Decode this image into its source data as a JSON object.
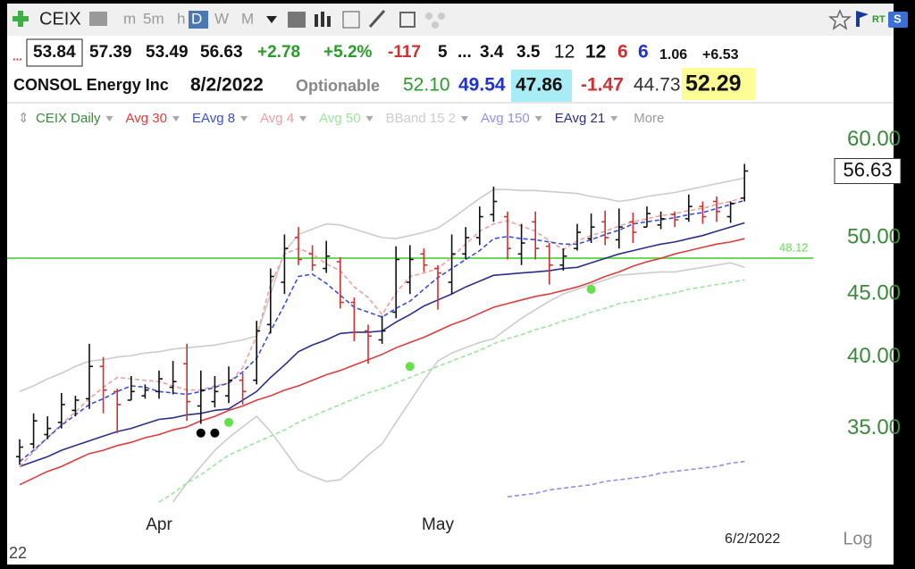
{
  "toolbar": {
    "symbol": "CEIX",
    "timeframes": [
      "m",
      "5m",
      "h",
      "D",
      "W",
      "M"
    ],
    "active_timeframe": 3,
    "rt": "RT",
    "badge": "S"
  },
  "quote_bar": {
    "flag": "...",
    "change": "+2.78",
    "change_pct": "+5.2%",
    "f1": "-117",
    "f2": "5",
    "f3": "...",
    "f4": "3.4",
    "f5": "3.5",
    "f6": "12",
    "f7": "12",
    "f8": "6",
    "f9": "6",
    "f10": "1.06",
    "f11": "+6.53"
  },
  "info_bar": {
    "company": "CONSOL Energy Inc",
    "date": "8/2/2022",
    "optionable": "Optionable",
    "v1": "52.10",
    "v2": "49.54",
    "v3": "47.86",
    "v4": "-1.47",
    "v5": "44.73",
    "v6": "52.29"
  },
  "footer": {
    "left_number": "22"
  },
  "chart_data": {
    "type": "ohlc",
    "log_scale": true,
    "grid": false,
    "ylim": [
      30.35,
      61.2
    ],
    "yticks": [
      {
        "value": 35,
        "label": "35.00"
      },
      {
        "value": 40,
        "label": "40.00"
      },
      {
        "value": 45,
        "label": "45.00"
      },
      {
        "value": 50,
        "label": "50.00"
      },
      {
        "value": 60,
        "label": "60.00"
      }
    ],
    "categories": [
      null,
      null,
      null,
      null,
      null,
      null,
      null,
      null,
      null,
      null,
      "Apr",
      null,
      null,
      null,
      null,
      null,
      null,
      null,
      null,
      null,
      null,
      null,
      null,
      null,
      null,
      null,
      null,
      null,
      null,
      null,
      "May",
      null,
      null,
      null,
      null,
      null,
      null,
      null,
      null,
      null,
      null,
      null,
      null,
      null,
      null,
      null,
      null,
      null,
      null,
      null,
      null,
      null,
      "6/2/2022"
    ],
    "price": {
      "name": "CEIX Daily",
      "color": "#3a8a3a",
      "up_color": "#111111",
      "down_color": "#d03030",
      "open": [
        33.2,
        34.0,
        34.6,
        35.4,
        36.2,
        37.0,
        39.3,
        37.5,
        36.9,
        37.2,
        37.5,
        37.8,
        39.5,
        36.5,
        36.8,
        37.2,
        38.3,
        38.3,
        42.5,
        46.0,
        50.0,
        48.5,
        47.2,
        47.8,
        44.3,
        42.0,
        41.3,
        43.5,
        46.0,
        48.5,
        47.2,
        46.0,
        48.5,
        50.0,
        52.2,
        52.0,
        48.5,
        51.5,
        49.2,
        47.5,
        49.0,
        49.9,
        51.5,
        49.8,
        51.5,
        51.0,
        51.2,
        52.2,
        51.8,
        53.0,
        53.5,
        52.0,
        53.84
      ],
      "high": [
        34.3,
        36.0,
        35.8,
        37.4,
        37.2,
        41.0,
        40.0,
        37.7,
        38.6,
        38.0,
        39.0,
        39.7,
        41.0,
        39.0,
        38.6,
        39.3,
        38.8,
        42.8,
        47.2,
        50.3,
        51.0,
        49.3,
        49.7,
        48.2,
        44.7,
        42.5,
        43.2,
        49.2,
        49.3,
        49.0,
        47.5,
        50.3,
        51.0,
        53.0,
        55.0,
        52.5,
        51.3,
        52.5,
        49.5,
        49.0,
        51.3,
        52.3,
        52.6,
        52.8,
        52.4,
        53.0,
        52.5,
        52.5,
        54.2,
        53.5,
        54.0,
        53.5,
        57.39
      ],
      "low": [
        32.7,
        33.7,
        34.3,
        35.0,
        35.8,
        36.3,
        36.0,
        34.7,
        36.9,
        37.0,
        37.0,
        37.3,
        35.5,
        35.3,
        36.4,
        36.7,
        36.6,
        38.0,
        41.8,
        45.0,
        47.5,
        47.0,
        46.8,
        43.8,
        41.2,
        39.5,
        41.0,
        43.0,
        45.0,
        46.9,
        43.7,
        45.0,
        48.0,
        49.3,
        51.5,
        48.0,
        47.5,
        48.0,
        45.8,
        47.0,
        48.8,
        49.5,
        49.3,
        49.0,
        49.5,
        51.0,
        50.8,
        51.0,
        51.5,
        51.3,
        51.5,
        51.4,
        53.49
      ],
      "close": [
        33.8,
        35.5,
        35.0,
        36.6,
        36.9,
        39.3,
        37.6,
        36.6,
        37.5,
        37.6,
        38.4,
        38.2,
        36.8,
        37.6,
        37.5,
        38.3,
        37.5,
        42.0,
        46.5,
        49.0,
        48.0,
        47.5,
        48.3,
        44.3,
        41.9,
        41.6,
        42.0,
        48.0,
        48.0,
        47.5,
        46.8,
        48.5,
        50.0,
        52.0,
        53.5,
        49.0,
        49.5,
        49.0,
        47.5,
        48.3,
        50.5,
        51.0,
        50.0,
        51.0,
        50.5,
        52.3,
        51.8,
        51.7,
        53.0,
        52.0,
        52.5,
        53.3,
        56.63
      ]
    },
    "series": [
      {
        "name": "Avg 30",
        "color": "#e03c3c",
        "dash": false,
        "values": [
          31.5,
          31.9,
          32.3,
          32.6,
          33.0,
          33.4,
          33.6,
          33.9,
          34.1,
          34.4,
          34.6,
          34.9,
          35.1,
          35.5,
          35.8,
          36.2,
          36.5,
          36.9,
          37.2,
          37.6,
          37.9,
          38.3,
          38.7,
          39.0,
          39.4,
          39.8,
          40.2,
          40.7,
          41.1,
          41.5,
          42.0,
          42.5,
          42.9,
          43.4,
          43.9,
          44.2,
          44.5,
          44.8,
          45.0,
          45.3,
          45.6,
          46.0,
          46.5,
          46.9,
          47.4,
          47.8,
          48.1,
          48.5,
          48.8,
          49.1,
          49.4,
          49.6,
          49.9
        ]
      },
      {
        "name": "EAvg 8",
        "color": "#3a4fd8",
        "dash": true,
        "values": [
          32.9,
          33.6,
          34.4,
          35.2,
          35.9,
          36.6,
          37.0,
          37.5,
          37.9,
          37.8,
          37.5,
          37.4,
          37.3,
          37.5,
          37.8,
          38.1,
          38.9,
          39.9,
          42.0,
          44.1,
          46.5,
          46.7,
          45.9,
          44.9,
          43.9,
          43.5,
          43.1,
          43.8,
          44.4,
          45.4,
          46.4,
          47.2,
          48.0,
          48.8,
          49.9,
          50.1,
          49.9,
          49.8,
          49.6,
          49.4,
          49.4,
          49.8,
          50.3,
          50.7,
          51.3,
          51.5,
          51.7,
          51.9,
          52.2,
          52.4,
          52.8,
          53.2,
          53.6
        ]
      },
      {
        "name": "Avg 4",
        "color": "#f0a0a0",
        "dash": true,
        "values": [
          32.6,
          33.5,
          34.4,
          35.3,
          36.1,
          37.0,
          37.8,
          38.5,
          38.4,
          38.3,
          38.2,
          37.9,
          37.6,
          37.6,
          37.9,
          38.1,
          39.2,
          41.6,
          45.8,
          48.5,
          49.0,
          48.5,
          47.6,
          47.0,
          45.6,
          44.7,
          43.3,
          45.1,
          46.5,
          46.8,
          47.2,
          48.2,
          49.4,
          50.6,
          51.3,
          51.6,
          51.1,
          50.6,
          49.7,
          48.9,
          49.7,
          50.2,
          50.6,
          51.1,
          51.5,
          51.8,
          52.1,
          52.3,
          52.6,
          52.8,
          53.2,
          53.5,
          53.9
        ]
      },
      {
        "name": "Avg 50",
        "color": "#9be69b",
        "dash": true,
        "values": [
          null,
          null,
          null,
          null,
          null,
          null,
          null,
          null,
          null,
          null,
          30.5,
          31.0,
          31.6,
          32.1,
          32.7,
          33.3,
          33.7,
          34.1,
          34.5,
          34.9,
          35.4,
          35.8,
          36.2,
          36.6,
          37.0,
          37.4,
          37.7,
          38.1,
          38.5,
          38.9,
          39.3,
          39.7,
          40.1,
          40.5,
          41.0,
          41.4,
          41.7,
          42.1,
          42.4,
          42.8,
          43.1,
          43.5,
          43.8,
          44.2,
          44.4,
          44.6,
          44.9,
          45.1,
          45.4,
          45.6,
          45.8,
          46.0,
          46.2
        ]
      },
      {
        "name": "BBand 15 2",
        "color": "#cccccc",
        "dash": false,
        "values": [
          37.5,
          37.9,
          38.4,
          38.8,
          39.3,
          39.7,
          39.8,
          40.0,
          40.1,
          40.3,
          40.4,
          40.6,
          40.7,
          40.8,
          40.9,
          41.1,
          41.3,
          41.6,
          45.0,
          48.7,
          50.3,
          50.8,
          51.3,
          51.2,
          50.8,
          50.4,
          50.0,
          49.9,
          50.2,
          50.5,
          50.9,
          51.8,
          52.8,
          53.8,
          54.7,
          54.7,
          54.6,
          54.6,
          54.5,
          54.4,
          54.3,
          54.0,
          53.8,
          53.5,
          53.7,
          54.0,
          54.2,
          54.4,
          54.7,
          55.0,
          55.3,
          55.6,
          55.9
        ],
        "lower": [
          null,
          null,
          null,
          null,
          null,
          null,
          null,
          null,
          null,
          null,
          null,
          30.5,
          31.6,
          32.6,
          33.6,
          34.4,
          35.1,
          35.8,
          34.8,
          33.6,
          32.4,
          32.0,
          31.7,
          31.8,
          32.5,
          33.3,
          34.0,
          35.4,
          36.8,
          38.3,
          39.7,
          40.3,
          40.7,
          41.1,
          41.4,
          42.2,
          43.0,
          43.7,
          44.4,
          45.0,
          45.4,
          45.8,
          46.2,
          46.6,
          46.7,
          46.8,
          46.9,
          46.9,
          47.1,
          47.3,
          47.5,
          47.7,
          47.3
        ]
      },
      {
        "name": "Avg 150",
        "color": "#9090ee",
        "dash": true,
        "values": [
          null,
          null,
          null,
          null,
          null,
          null,
          null,
          null,
          null,
          null,
          null,
          null,
          null,
          null,
          null,
          null,
          null,
          null,
          null,
          null,
          null,
          null,
          null,
          null,
          null,
          null,
          null,
          null,
          null,
          null,
          null,
          null,
          null,
          null,
          null,
          30.8,
          30.9,
          31.0,
          31.2,
          31.3,
          31.4,
          31.5,
          31.7,
          31.8,
          31.9,
          32.0,
          32.2,
          32.3,
          32.4,
          32.5,
          32.6,
          32.8,
          32.9
        ]
      },
      {
        "name": "EAvg 21",
        "color": "#2a2f8a",
        "dash": false,
        "values": [
          32.6,
          32.9,
          33.2,
          33.6,
          33.9,
          34.2,
          34.5,
          34.8,
          35.0,
          35.3,
          35.6,
          35.7,
          35.9,
          36.0,
          36.2,
          36.3,
          36.9,
          37.5,
          38.5,
          39.4,
          40.4,
          40.9,
          41.3,
          41.8,
          41.9,
          41.9,
          42.0,
          42.7,
          43.3,
          44.0,
          44.5,
          45.0,
          45.6,
          46.1,
          46.6,
          46.7,
          46.8,
          46.9,
          47.0,
          47.2,
          47.3,
          47.7,
          48.1,
          48.5,
          48.8,
          49.1,
          49.4,
          49.6,
          49.9,
          50.2,
          50.6,
          51.0,
          51.4
        ]
      }
    ],
    "draw_order": [
      4,
      3,
      5,
      0,
      6,
      2,
      1
    ],
    "markers": [
      {
        "color": "#000000",
        "values": [
          null,
          null,
          null,
          null,
          null,
          null,
          null,
          null,
          null,
          null,
          null,
          null,
          null,
          34.7,
          34.7,
          null,
          null,
          null,
          null,
          null,
          null,
          null,
          null,
          null,
          null,
          null,
          null,
          null,
          null,
          null,
          null,
          null,
          null,
          null,
          null,
          null,
          null,
          null,
          null,
          null,
          null,
          null,
          null,
          null,
          null,
          null,
          null,
          null,
          null,
          null,
          null,
          null,
          null
        ]
      },
      {
        "color": "#66e04a",
        "values": [
          null,
          null,
          null,
          null,
          null,
          null,
          null,
          null,
          null,
          null,
          null,
          null,
          null,
          null,
          null,
          35.4,
          null,
          null,
          null,
          null,
          null,
          null,
          null,
          null,
          null,
          null,
          null,
          null,
          39.3,
          null,
          null,
          null,
          null,
          null,
          null,
          null,
          null,
          null,
          null,
          null,
          null,
          45.4,
          null,
          null,
          null,
          null,
          null,
          null,
          null,
          null,
          null,
          null,
          null
        ]
      }
    ],
    "hline": {
      "value": 48.12,
      "color": "#66dd55"
    },
    "more_label": "More",
    "scale_label": "Log"
  }
}
